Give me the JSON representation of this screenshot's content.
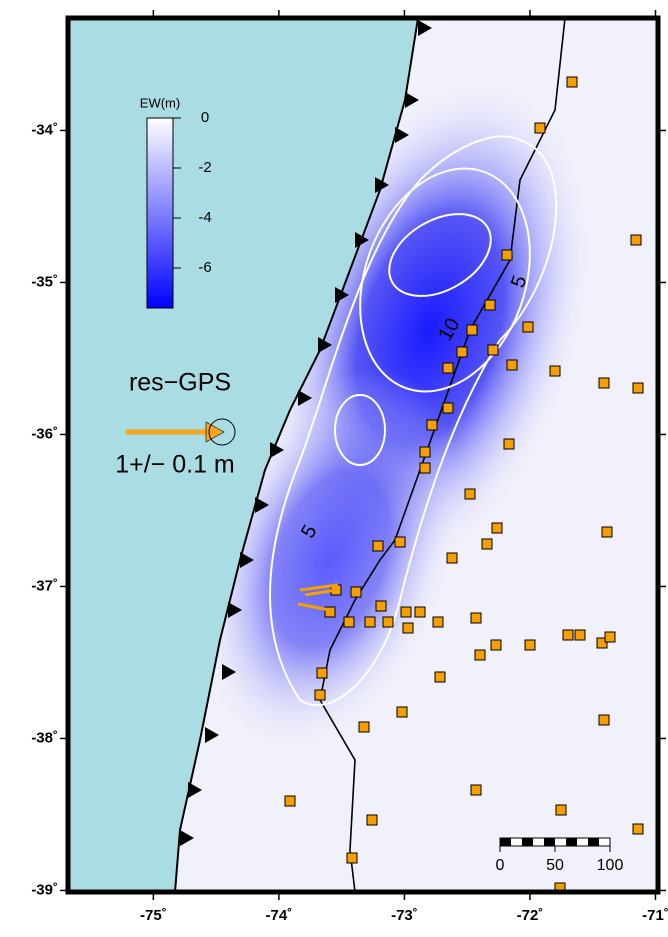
{
  "map": {
    "lonlim": [
      -75.68,
      -70.98
    ],
    "latlim": [
      -39.01,
      -33.26
    ],
    "lon_ticks": [
      {
        "value": -75,
        "label": "-75˚"
      },
      {
        "value": -74,
        "label": "-74˚"
      },
      {
        "value": -73,
        "label": "-73˚"
      },
      {
        "value": -72,
        "label": "-72˚"
      },
      {
        "value": -71,
        "label": "-71˚"
      }
    ],
    "lat_ticks": [
      {
        "value": -34,
        "label": "-34˚"
      },
      {
        "value": -35,
        "label": "-35˚"
      },
      {
        "value": -36,
        "label": "-36˚"
      },
      {
        "value": -37,
        "label": "-37˚"
      },
      {
        "value": -38,
        "label": "-38˚"
      },
      {
        "value": -39,
        "label": "-39˚"
      }
    ],
    "colorbar": {
      "label": "EW(m)",
      "range": [
        0,
        -7.6
      ],
      "ticks": [
        0,
        -2,
        -4,
        -6
      ]
    },
    "legend": {
      "title": "res−GPS",
      "scale_label": "1+/− 0.1 m"
    },
    "contour_labels": [
      "5",
      "10",
      "5"
    ],
    "scale_bar": {
      "ticks": [
        0,
        50,
        100
      ]
    }
  }
}
